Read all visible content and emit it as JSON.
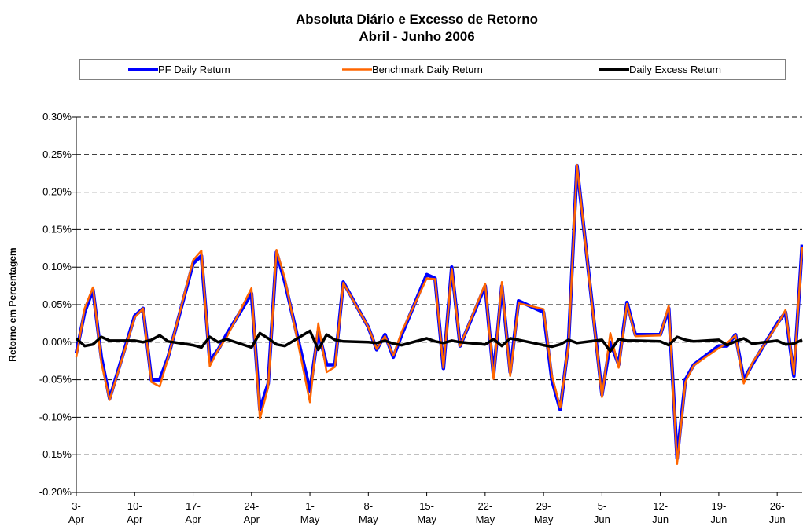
{
  "chart_data": {
    "type": "line",
    "title": "Absoluta Diário e Excesso de Retorno",
    "subtitle": "Abril - Junho 2006",
    "y_label": "Retorno em Percentagem",
    "x": [
      "04-03",
      "04-04",
      "04-05",
      "04-06",
      "04-07",
      "04-10",
      "04-11",
      "04-12",
      "04-13",
      "04-14",
      "04-17",
      "04-18",
      "04-19",
      "04-20",
      "04-21",
      "04-24",
      "04-25",
      "04-26",
      "04-27",
      "04-28",
      "05-01",
      "05-02",
      "05-03",
      "05-04",
      "05-05",
      "05-08",
      "05-09",
      "05-10",
      "05-11",
      "05-12",
      "05-15",
      "05-16",
      "05-17",
      "05-18",
      "05-19",
      "05-22",
      "05-23",
      "05-24",
      "05-25",
      "05-26",
      "05-29",
      "05-30",
      "05-31",
      "06-01",
      "06-02",
      "06-05",
      "06-06",
      "06-07",
      "06-08",
      "06-09",
      "06-12",
      "06-13",
      "06-14",
      "06-15",
      "06-16",
      "06-19",
      "06-20",
      "06-21",
      "06-22",
      "06-23",
      "06-26",
      "06-27",
      "06-28",
      "06-29"
    ],
    "series": [
      {
        "name": "PF Daily Return",
        "color": "#0000ff",
        "values": [
          -0.015,
          0.04,
          0.07,
          -0.02,
          -0.075,
          0.035,
          0.045,
          -0.05,
          -0.05,
          -0.02,
          0.105,
          0.115,
          -0.025,
          -0.01,
          0.01,
          0.065,
          -0.09,
          -0.055,
          0.12,
          0.08,
          -0.065,
          0.015,
          -0.03,
          -0.03,
          0.08,
          0.02,
          -0.01,
          0.01,
          -0.02,
          0.01,
          0.09,
          0.085,
          -0.035,
          0.1,
          -0.005,
          0.075,
          -0.045,
          0.075,
          -0.04,
          0.055,
          0.04,
          -0.05,
          -0.09,
          0.0,
          0.235,
          -0.07,
          0.0,
          -0.03,
          0.053,
          0.01,
          0.01,
          0.045,
          -0.155,
          -0.05,
          -0.03,
          -0.005,
          -0.005,
          0.01,
          -0.05,
          -0.03,
          0.025,
          0.04,
          -0.045,
          0.13
        ]
      },
      {
        "name": "Benchmark Daily Return",
        "color": "#ff6600",
        "values": [
          -0.02,
          0.045,
          0.073,
          -0.027,
          -0.077,
          0.033,
          0.045,
          -0.053,
          -0.059,
          -0.021,
          0.109,
          0.122,
          -0.032,
          -0.01,
          0.006,
          0.072,
          -0.102,
          -0.06,
          0.123,
          0.085,
          -0.08,
          0.025,
          -0.04,
          -0.033,
          0.079,
          0.02,
          -0.009,
          0.008,
          -0.018,
          0.014,
          0.085,
          0.084,
          -0.034,
          0.098,
          -0.005,
          0.078,
          -0.049,
          0.08,
          -0.045,
          0.052,
          0.044,
          -0.044,
          -0.087,
          -0.003,
          0.236,
          -0.073,
          0.012,
          -0.034,
          0.051,
          0.008,
          0.009,
          0.049,
          -0.162,
          -0.053,
          -0.031,
          -0.008,
          -0.001,
          0.009,
          -0.055,
          -0.028,
          0.023,
          0.043,
          -0.043,
          0.127
        ]
      },
      {
        "name": "Daily Excess Return",
        "color": "#000000",
        "values": [
          0.005,
          -0.005,
          -0.003,
          0.007,
          0.002,
          0.002,
          0.0,
          0.003,
          0.009,
          0.001,
          -0.004,
          -0.007,
          0.007,
          0.0,
          0.004,
          -0.007,
          0.012,
          0.005,
          -0.003,
          -0.005,
          0.015,
          -0.01,
          0.01,
          0.003,
          0.001,
          0.0,
          -0.001,
          0.002,
          -0.002,
          -0.004,
          0.005,
          0.001,
          -0.001,
          0.002,
          0.0,
          -0.003,
          0.004,
          -0.005,
          0.005,
          0.003,
          -0.004,
          -0.006,
          -0.003,
          0.003,
          -0.001,
          0.003,
          -0.012,
          0.004,
          0.002,
          0.002,
          0.001,
          -0.004,
          0.007,
          0.003,
          0.001,
          0.003,
          -0.004,
          0.001,
          0.005,
          -0.002,
          0.002,
          -0.003,
          -0.002,
          0.003
        ]
      }
    ],
    "xlim": [
      "04-03",
      "06-29"
    ],
    "xticks": [
      {
        "value": "04-03",
        "label": "3-Apr"
      },
      {
        "value": "04-10",
        "label": "10-Apr"
      },
      {
        "value": "04-17",
        "label": "17-Apr"
      },
      {
        "value": "04-24",
        "label": "24-Apr"
      },
      {
        "value": "05-01",
        "label": "1-May"
      },
      {
        "value": "05-08",
        "label": "8-May"
      },
      {
        "value": "05-15",
        "label": "15-May"
      },
      {
        "value": "05-22",
        "label": "22-May"
      },
      {
        "value": "05-29",
        "label": "29-May"
      },
      {
        "value": "06-05",
        "label": "5-Jun"
      },
      {
        "value": "06-12",
        "label": "12-Jun"
      },
      {
        "value": "06-19",
        "label": "19-Jun"
      },
      {
        "value": "06-26",
        "label": "26-Jun"
      }
    ],
    "ylim": [
      -0.2,
      0.3
    ],
    "yticks": [
      {
        "value": -0.2,
        "label": "-0.20%"
      },
      {
        "value": -0.15,
        "label": "-0.15%"
      },
      {
        "value": -0.1,
        "label": "-0.10%"
      },
      {
        "value": -0.05,
        "label": "-0.05%"
      },
      {
        "value": 0,
        "label": "0.00%"
      },
      {
        "value": 0.05,
        "label": "0.05%"
      },
      {
        "value": 0.1,
        "label": "0.10%"
      },
      {
        "value": 0.15,
        "label": "0.15%"
      },
      {
        "value": 0.2,
        "label": "0.20%"
      },
      {
        "value": 0.25,
        "label": "0.25%"
      },
      {
        "value": 0.3,
        "label": "0.30%"
      }
    ],
    "grid": true,
    "legend": "top"
  }
}
